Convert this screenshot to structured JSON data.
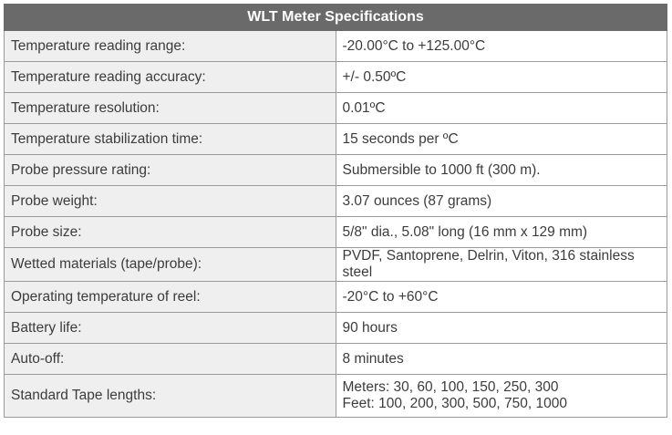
{
  "table": {
    "title": "WLT Meter Specifications",
    "rows": [
      {
        "label": "Temperature reading range:",
        "value": "-20.00°C to +125.00°C"
      },
      {
        "label": "Temperature reading accuracy:",
        "value": "+/- 0.50ºC"
      },
      {
        "label": "Temperature resolution:",
        "value": "0.01ºC"
      },
      {
        "label": "Temperature stabilization time:",
        "value": "15 seconds per ºC"
      },
      {
        "label": "Probe pressure rating:",
        "value": "Submersible to 1000 ft (300 m)."
      },
      {
        "label": "Probe weight:",
        "value": "3.07 ounces (87 grams)"
      },
      {
        "label": "Probe size:",
        "value": "5/8\" dia., 5.08\" long (16 mm x 129 mm)"
      },
      {
        "label": "Wetted materials (tape/probe):",
        "value": "PVDF, Santoprene, Delrin, Viton, 316 stainless steel"
      },
      {
        "label": "Operating temperature of reel:",
        "value": "-20°C to +60°C"
      },
      {
        "label": "Battery life:",
        "value": "90 hours"
      },
      {
        "label": "Auto-off:",
        "value": "8 minutes"
      },
      {
        "label": "Standard Tape lengths:",
        "value_lines": [
          "Meters: 30, 60, 100, 150, 250, 300",
          "Feet: 100, 200, 300, 500, 750, 1000"
        ]
      }
    ]
  }
}
